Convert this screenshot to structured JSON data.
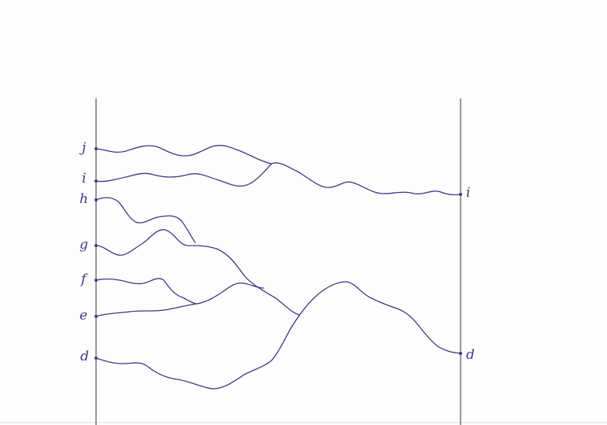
{
  "diagram": {
    "ink_color": "#3a3a86",
    "frame_color": "#555555",
    "left_labels": [
      "j",
      "i",
      "h",
      "g",
      "f",
      "e",
      "d"
    ],
    "right_labels": [
      "i",
      "d"
    ]
  }
}
